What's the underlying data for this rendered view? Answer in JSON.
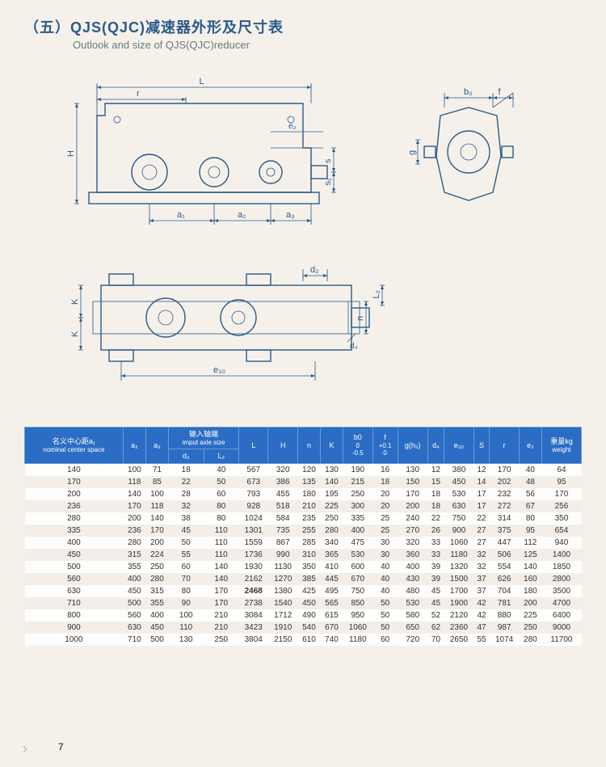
{
  "title_cn": "（五）QJS(QJC)减速器外形及尺寸表",
  "title_en": "Outlook and size of QJS(QJC)reducer",
  "page_number": "7",
  "diagram": {
    "stroke_color": "#2a5a8a",
    "dim_labels": [
      "L",
      "r",
      "H",
      "e₂",
      "s",
      "s₁",
      "a₁",
      "a₂",
      "a₃",
      "b₀",
      "f",
      "g",
      "d₂",
      "L₂",
      "n",
      "K",
      "K",
      "d₄",
      "e₃₀"
    ]
  },
  "table": {
    "header_bg": "#2b6dc4",
    "header_fg": "#ffffff",
    "columns": [
      {
        "top": "名义中心距a₁",
        "sub": "nominal center space"
      },
      {
        "top": "a₂"
      },
      {
        "top": "a₃"
      },
      {
        "group": "输入轴端",
        "group_en": "imput axle size",
        "children": [
          "d₂",
          "L₂"
        ]
      },
      {
        "top": "L"
      },
      {
        "top": "H"
      },
      {
        "top": "n"
      },
      {
        "top": "K"
      },
      {
        "top": "b0",
        "sub": "0\n-0.5"
      },
      {
        "top": "f",
        "sub": "+0.1\n0"
      },
      {
        "top": "g(h₉)"
      },
      {
        "top": "d₄"
      },
      {
        "top": "e₃₀"
      },
      {
        "top": "S"
      },
      {
        "top": "r"
      },
      {
        "top": "e₂"
      },
      {
        "top": "重量kg",
        "sub": "weight"
      }
    ],
    "rows": [
      [
        140,
        100,
        71,
        18,
        40,
        567,
        320,
        120,
        130,
        190,
        16,
        130,
        12,
        380,
        12,
        170,
        40,
        64
      ],
      [
        170,
        118,
        85,
        22,
        50,
        673,
        386,
        135,
        140,
        215,
        18,
        150,
        15,
        450,
        14,
        202,
        48,
        95
      ],
      [
        200,
        140,
        100,
        28,
        60,
        793,
        455,
        180,
        195,
        250,
        20,
        170,
        18,
        530,
        17,
        232,
        56,
        170
      ],
      [
        236,
        170,
        118,
        32,
        80,
        928,
        518,
        210,
        225,
        300,
        20,
        200,
        18,
        630,
        17,
        272,
        67,
        256
      ],
      [
        280,
        200,
        140,
        38,
        80,
        1024,
        584,
        235,
        250,
        335,
        25,
        240,
        22,
        750,
        22,
        314,
        80,
        350
      ],
      [
        335,
        236,
        170,
        45,
        110,
        1301,
        735,
        255,
        280,
        400,
        25,
        270,
        26,
        900,
        27,
        375,
        95,
        654
      ],
      [
        400,
        280,
        200,
        50,
        110,
        1559,
        867,
        285,
        340,
        475,
        30,
        320,
        33,
        1060,
        27,
        447,
        112,
        940
      ],
      [
        450,
        315,
        224,
        55,
        110,
        1736,
        990,
        310,
        365,
        530,
        30,
        360,
        33,
        1180,
        32,
        506,
        125,
        1400
      ],
      [
        500,
        355,
        250,
        60,
        140,
        1930,
        1130,
        350,
        410,
        600,
        40,
        400,
        39,
        1320,
        32,
        554,
        140,
        1850
      ],
      [
        560,
        400,
        280,
        70,
        140,
        2162,
        1270,
        385,
        445,
        670,
        40,
        430,
        39,
        1500,
        37,
        626,
        160,
        2800
      ],
      [
        630,
        450,
        315,
        80,
        170,
        2468,
        1380,
        425,
        495,
        750,
        40,
        480,
        45,
        1700,
        37,
        704,
        180,
        3500
      ],
      [
        710,
        500,
        355,
        90,
        170,
        2738,
        1540,
        450,
        565,
        850,
        50,
        530,
        45,
        1900,
        42,
        781,
        200,
        4700
      ],
      [
        800,
        560,
        400,
        100,
        210,
        3084,
        1712,
        490,
        615,
        950,
        50,
        580,
        52,
        2120,
        42,
        880,
        225,
        6400
      ],
      [
        900,
        630,
        450,
        110,
        210,
        3423,
        1910,
        540,
        670,
        1060,
        50,
        650,
        62,
        2360,
        47,
        987,
        250,
        9000
      ],
      [
        1000,
        710,
        500,
        130,
        250,
        3804,
        2150,
        610,
        740,
        1180,
        60,
        720,
        70,
        2650,
        55,
        1074,
        280,
        11700
      ]
    ],
    "bold_cell": {
      "row": 10,
      "col": 5
    }
  }
}
